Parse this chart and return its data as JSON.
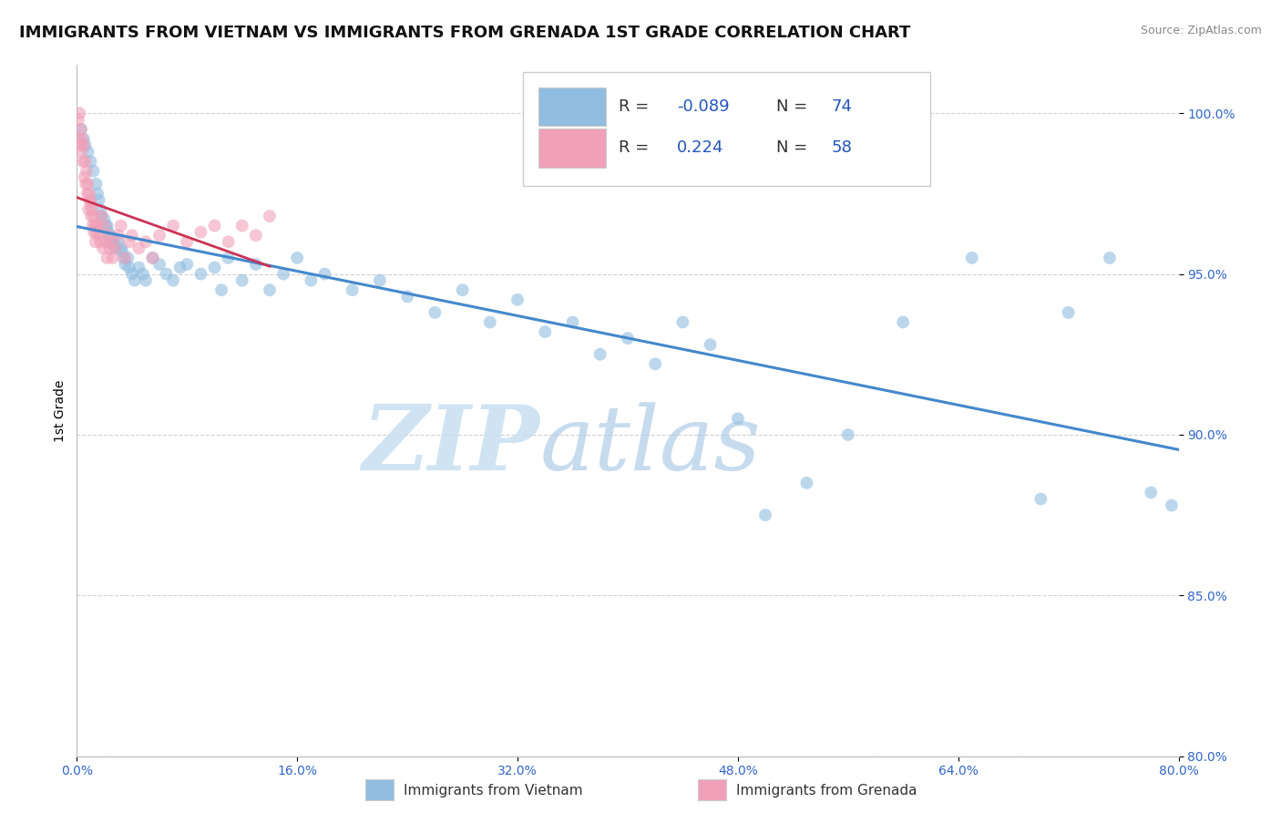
{
  "title": "IMMIGRANTS FROM VIETNAM VS IMMIGRANTS FROM GRENADA 1ST GRADE CORRELATION CHART",
  "source": "Source: ZipAtlas.com",
  "ylabel": "1st Grade",
  "legend_entries": [
    {
      "label": "Immigrants from Vietnam",
      "color": "#a8c8e8",
      "R": -0.089,
      "N": 74
    },
    {
      "label": "Immigrants from Grenada",
      "color": "#f4a0b0",
      "R": 0.224,
      "N": 58
    }
  ],
  "vietnam_x": [
    0.3,
    0.5,
    0.6,
    0.8,
    1.0,
    1.2,
    1.4,
    1.5,
    1.6,
    1.7,
    1.8,
    2.0,
    2.1,
    2.2,
    2.3,
    2.4,
    2.5,
    2.6,
    2.7,
    2.8,
    3.0,
    3.2,
    3.3,
    3.4,
    3.5,
    3.7,
    3.8,
    4.0,
    4.2,
    4.5,
    4.8,
    5.0,
    5.5,
    6.0,
    6.5,
    7.0,
    7.5,
    8.0,
    9.0,
    10.0,
    10.5,
    11.0,
    12.0,
    13.0,
    14.0,
    15.0,
    16.0,
    17.0,
    18.0,
    20.0,
    22.0,
    24.0,
    26.0,
    28.0,
    30.0,
    32.0,
    34.0,
    36.0,
    38.0,
    40.0,
    42.0,
    44.0,
    46.0,
    48.0,
    50.0,
    53.0,
    56.0,
    60.0,
    65.0,
    70.0,
    72.0,
    75.0,
    78.0,
    79.5
  ],
  "vietnam_y": [
    99.5,
    99.2,
    99.0,
    98.8,
    98.5,
    98.2,
    97.8,
    97.5,
    97.3,
    97.0,
    96.8,
    96.7,
    96.5,
    96.5,
    96.3,
    96.2,
    96.0,
    96.1,
    95.9,
    95.8,
    96.0,
    95.8,
    95.7,
    95.5,
    95.3,
    95.5,
    95.2,
    95.0,
    94.8,
    95.2,
    95.0,
    94.8,
    95.5,
    95.3,
    95.0,
    94.8,
    95.2,
    95.3,
    95.0,
    95.2,
    94.5,
    95.5,
    94.8,
    95.3,
    94.5,
    95.0,
    95.5,
    94.8,
    95.0,
    94.5,
    94.8,
    94.3,
    93.8,
    94.5,
    93.5,
    94.2,
    93.2,
    93.5,
    92.5,
    93.0,
    92.2,
    93.5,
    92.8,
    90.5,
    87.5,
    88.5,
    90.0,
    93.5,
    95.5,
    88.0,
    93.8,
    95.5,
    88.2,
    87.8
  ],
  "grenada_x": [
    0.1,
    0.2,
    0.3,
    0.4,
    0.5,
    0.6,
    0.7,
    0.8,
    0.9,
    1.0,
    1.1,
    1.2,
    1.3,
    1.4,
    1.5,
    1.6,
    1.7,
    1.8,
    1.9,
    2.0,
    2.1,
    2.2,
    2.3,
    2.4,
    2.5,
    2.6,
    2.8,
    3.0,
    3.2,
    3.5,
    3.8,
    4.0,
    4.5,
    5.0,
    5.5,
    6.0,
    7.0,
    8.0,
    9.0,
    10.0,
    11.0,
    12.0,
    13.0,
    14.0,
    0.15,
    0.25,
    0.35,
    0.45,
    0.55,
    0.65,
    0.75,
    0.85,
    0.95,
    1.05,
    1.15,
    1.25,
    1.35,
    1.45
  ],
  "grenada_y": [
    99.8,
    100.0,
    99.5,
    99.2,
    99.0,
    98.5,
    98.2,
    97.8,
    97.5,
    97.2,
    97.0,
    96.8,
    96.5,
    96.3,
    96.5,
    96.2,
    96.0,
    96.8,
    95.8,
    96.5,
    96.0,
    95.5,
    96.2,
    95.8,
    96.0,
    95.5,
    95.8,
    96.2,
    96.5,
    95.5,
    96.0,
    96.2,
    95.8,
    96.0,
    95.5,
    96.2,
    96.5,
    96.0,
    96.3,
    96.5,
    96.0,
    96.5,
    96.2,
    96.8,
    99.2,
    99.0,
    98.8,
    98.5,
    98.0,
    97.8,
    97.5,
    97.0,
    97.3,
    96.8,
    96.5,
    96.3,
    96.0,
    96.5
  ],
  "background_color": "#ffffff",
  "grid_color": "#cccccc",
  "scatter_alpha": 0.6,
  "scatter_size": 100,
  "vietnam_color": "#90bde0",
  "grenada_color": "#f0a0b8",
  "trendline_vietnam_color": "#4488cc",
  "trendline_grenada_color": "#cc3355",
  "watermark_zip": "ZIP",
  "watermark_atlas": "atlas",
  "watermark_color_zip": "#cce0f0",
  "watermark_color_atlas": "#b8d8ee",
  "title_fontsize": 13,
  "axis_label_fontsize": 10,
  "tick_fontsize": 10,
  "source_fontsize": 9
}
